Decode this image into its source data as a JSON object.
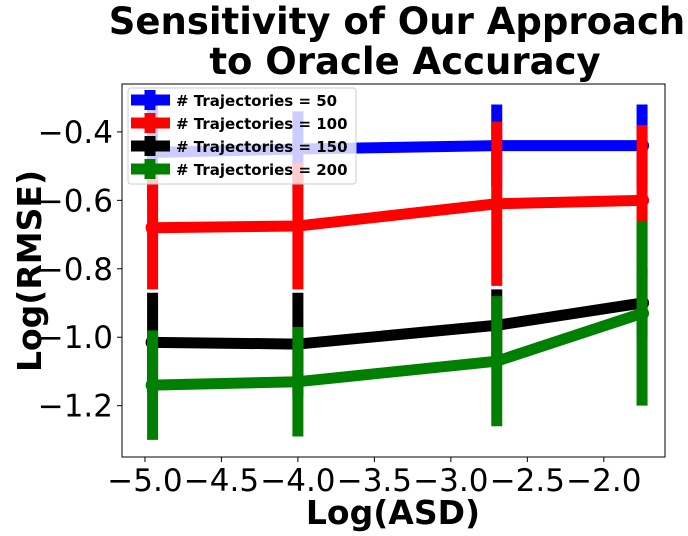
{
  "chart_data": {
    "type": "line",
    "title_lines": [
      "Sensitivity of Our Approach",
      "to Oracle Accuracy"
    ],
    "xlabel": "Log(ASD)",
    "ylabel": "Log(RMSE)",
    "xlim": [
      -5.15,
      -1.6
    ],
    "ylim": [
      -1.35,
      -0.26
    ],
    "x_ticks": [
      -5.0,
      -4.5,
      -4.0,
      -3.5,
      -3.0,
      -2.5,
      -2.0
    ],
    "x_tick_labels": [
      "−5.0",
      "−4.5",
      "−4.0",
      "−3.5",
      "−3.0",
      "−2.5",
      "−2.0"
    ],
    "y_ticks": [
      -0.4,
      -0.6,
      -0.8,
      -1.0,
      -1.2
    ],
    "y_tick_labels": [
      "−0.4",
      "−0.6",
      "−0.8",
      "−1.0",
      "−1.2"
    ],
    "x": [
      -4.95,
      -4.0,
      -2.7,
      -1.75
    ],
    "legend_position": "top-left",
    "series": [
      {
        "name": "# Trajectories = 50",
        "color": "#0000ff",
        "values": [
          -0.46,
          -0.45,
          -0.44,
          -0.44
        ],
        "err_low": [
          -0.6,
          -0.56,
          -0.56,
          -0.56
        ],
        "err_high": [
          -0.32,
          -0.34,
          -0.32,
          -0.32
        ]
      },
      {
        "name": "# Trajectories = 100",
        "color": "#ff0000",
        "values": [
          -0.68,
          -0.675,
          -0.61,
          -0.6
        ],
        "err_low": [
          -0.86,
          -0.86,
          -0.85,
          -0.82
        ],
        "err_high": [
          -0.5,
          -0.49,
          -0.37,
          -0.38
        ]
      },
      {
        "name": "# Trajectories = 150",
        "color": "#000000",
        "values": [
          -1.015,
          -1.02,
          -0.965,
          -0.9
        ],
        "err_low": [
          -1.16,
          -1.17,
          -1.08,
          -1.0
        ],
        "err_high": [
          -0.87,
          -0.87,
          -0.86,
          -0.8
        ]
      },
      {
        "name": "# Trajectories = 200",
        "color": "#008000",
        "values": [
          -1.14,
          -1.13,
          -1.07,
          -0.93
        ],
        "err_low": [
          -1.3,
          -1.29,
          -1.26,
          -1.2
        ],
        "err_high": [
          -0.98,
          -0.97,
          -0.88,
          -0.66
        ]
      }
    ]
  }
}
